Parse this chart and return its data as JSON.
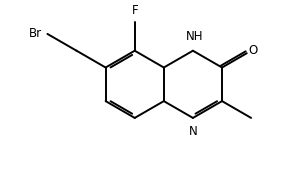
{
  "background_color": "#ffffff",
  "bond_color": "#000000",
  "line_width": 1.4,
  "font_size": 8.5,
  "figsize": [
    2.98,
    1.7
  ],
  "dpi": 100,
  "xlim": [
    -0.18,
    0.92
  ],
  "ylim": [
    0.1,
    0.95
  ]
}
